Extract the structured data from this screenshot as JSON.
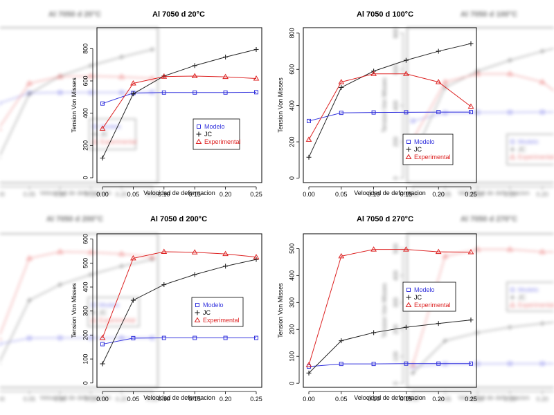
{
  "chart_data": [
    {
      "type": "line",
      "title": "Al 7050 d 20°C",
      "xlabel": "Velocidad de deformacion",
      "ylabel": "Tension Von Misses",
      "x": [
        0.0,
        0.05,
        0.1,
        0.15,
        0.2,
        0.25
      ],
      "xticks": [
        "0.00",
        "0.05",
        "0.10",
        "0.15",
        "0.20",
        "0.25"
      ],
      "yticks": [
        0,
        200,
        400,
        600,
        800
      ],
      "ylim": [
        -30,
        930
      ],
      "series": [
        {
          "name": "Modelo",
          "color": "#3333dd",
          "marker": "square",
          "values": [
            460,
            525,
            528,
            528,
            528,
            530
          ]
        },
        {
          "name": "JC",
          "color": "#222222",
          "marker": "plus",
          "values": [
            122,
            520,
            630,
            695,
            748,
            795
          ]
        },
        {
          "name": "Experimental",
          "color": "#dd2222",
          "marker": "triangle",
          "values": [
            305,
            585,
            627,
            630,
            625,
            615
          ]
        }
      ],
      "legend": "lower-right"
    },
    {
      "type": "line",
      "title": "Al 7050 d 100°C",
      "xlabel": "Velocidad de deformacion",
      "ylabel": "Tension Von Misses",
      "x": [
        0.0,
        0.05,
        0.1,
        0.15,
        0.2,
        0.25
      ],
      "xticks": [
        "0.00",
        "0.05",
        "0.10",
        "0.15",
        "0.20",
        "0.25"
      ],
      "yticks": [
        0,
        200,
        400,
        600,
        800
      ],
      "ylim": [
        -25,
        830
      ],
      "series": [
        {
          "name": "Modelo",
          "color": "#3333dd",
          "marker": "square",
          "values": [
            315,
            360,
            362,
            363,
            364,
            364
          ]
        },
        {
          "name": "JC",
          "color": "#222222",
          "marker": "plus",
          "values": [
            115,
            500,
            590,
            650,
            700,
            742
          ]
        },
        {
          "name": "Experimental",
          "color": "#dd2222",
          "marker": "triangle",
          "values": [
            212,
            530,
            575,
            575,
            530,
            395
          ]
        }
      ],
      "legend": "lower-right"
    },
    {
      "type": "line",
      "title": "Al 7050 d 200°C",
      "xlabel": "Velocidad de deformacion",
      "ylabel": "Tension Von Misses",
      "x": [
        0.0,
        0.05,
        0.1,
        0.15,
        0.2,
        0.25
      ],
      "xticks": [
        "0.00",
        "0.05",
        "0.10",
        "0.15",
        "0.20",
        "0.25"
      ],
      "yticks": [
        0,
        100,
        200,
        300,
        400,
        500,
        600
      ],
      "ylim": [
        -18,
        622
      ],
      "series": [
        {
          "name": "Modelo",
          "color": "#3333dd",
          "marker": "square",
          "values": [
            162,
            187,
            188,
            188,
            188,
            188
          ]
        },
        {
          "name": "JC",
          "color": "#222222",
          "marker": "plus",
          "values": [
            80,
            345,
            410,
            452,
            487,
            515
          ]
        },
        {
          "name": "Experimental",
          "color": "#dd2222",
          "marker": "triangle",
          "values": [
            188,
            520,
            547,
            545,
            538,
            525
          ]
        }
      ],
      "legend": "lower-right"
    },
    {
      "type": "line",
      "title": "Al 7050 d 270°C",
      "xlabel": "Velocidad de deformacion",
      "ylabel": "Tension Von Misses",
      "x": [
        0.0,
        0.05,
        0.1,
        0.15,
        0.2,
        0.25
      ],
      "xticks": [
        "0.00",
        "0.05",
        "0.10",
        "0.15",
        "0.20",
        "0.25"
      ],
      "yticks": [
        0,
        100,
        200,
        300,
        400,
        500
      ],
      "ylim": [
        -15,
        555
      ],
      "series": [
        {
          "name": "Modelo",
          "color": "#3333dd",
          "marker": "square",
          "values": [
            62,
            72,
            72,
            73,
            73,
            73
          ]
        },
        {
          "name": "JC",
          "color": "#222222",
          "marker": "plus",
          "values": [
            38,
            158,
            188,
            208,
            222,
            235
          ]
        },
        {
          "name": "Experimental",
          "color": "#dd2222",
          "marker": "triangle",
          "values": [
            68,
            472,
            497,
            497,
            488,
            487
          ]
        }
      ],
      "legend": "center-right"
    }
  ]
}
